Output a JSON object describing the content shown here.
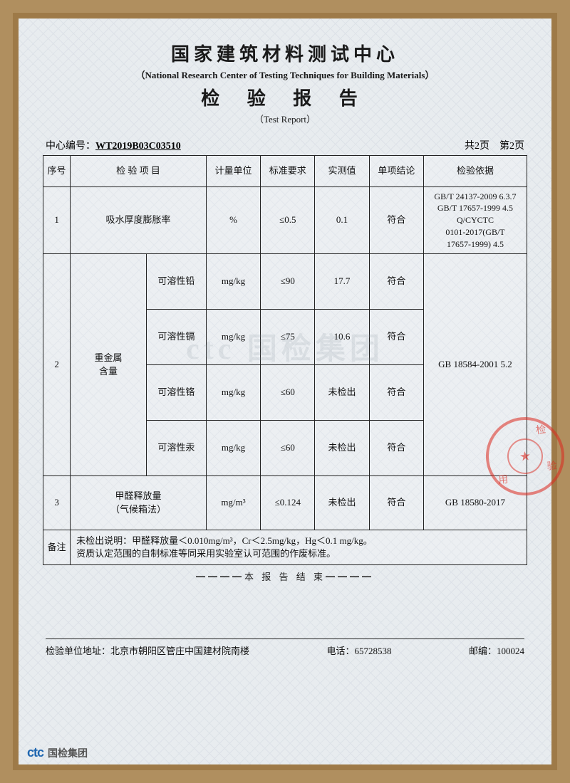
{
  "header": {
    "title_cn": "国家建筑材料测试中心",
    "title_en": "（National Research Center of Testing Techniques for Building Materials）",
    "title2_cn": "检 验 报 告",
    "title2_en": "（Test Report）"
  },
  "meta": {
    "serial_label": "中心编号：",
    "serial_value": "WT2019B03C03510",
    "page_info": "共2页　第2页"
  },
  "columns": {
    "seq": "序号",
    "item": "检 验 项 目",
    "unit": "计量单位",
    "req": "标准要求",
    "val": "实测值",
    "res": "单项结论",
    "basis": "检验依据"
  },
  "rows": {
    "r1": {
      "seq": "1",
      "item": "吸水厚度膨胀率",
      "unit": "%",
      "req": "≤0.5",
      "val": "0.1",
      "res": "符合",
      "basis": "GB/T 24137-2009 6.3.7\nGB/T 17657-1999 4.5\nQ/CYCTC\n0101-2017(GB/T\n17657-1999) 4.5"
    },
    "r2": {
      "seq": "2",
      "item": "重金属\n含量",
      "sub1": {
        "name": "可溶性铅",
        "unit": "mg/kg",
        "req": "≤90",
        "val": "17.7",
        "res": "符合"
      },
      "sub2": {
        "name": "可溶性镉",
        "unit": "mg/kg",
        "req": "≤75",
        "val": "10.6",
        "res": "符合"
      },
      "sub3": {
        "name": "可溶性铬",
        "unit": "mg/kg",
        "req": "≤60",
        "val": "未检出",
        "res": "符合"
      },
      "sub4": {
        "name": "可溶性汞",
        "unit": "mg/kg",
        "req": "≤60",
        "val": "未检出",
        "res": "符合"
      },
      "basis": "GB 18584-2001 5.2"
    },
    "r3": {
      "seq": "3",
      "item": "甲醛释放量\n（气候箱法）",
      "unit": "mg/m³",
      "req": "≤0.124",
      "val": "未检出",
      "res": "符合",
      "basis": "GB 18580-2017"
    }
  },
  "notes": {
    "label": "备注",
    "line1": "未检出说明：甲醛释放量＜0.010mg/m³，Cr＜2.5mg/kg，Hg＜0.1 mg/kg。",
    "line2": "资质认定范围的自制标准等同采用实验室认可范围的作废标准。"
  },
  "end_line": "━━━━本 报 告 结 束━━━━",
  "footer": {
    "addr_label": "检验单位地址：",
    "addr_value": "北京市朝阳区管庄中国建材院南楼",
    "tel_label": "电话：",
    "tel_value": "65728538",
    "post_label": "邮编：",
    "post_value": "100024"
  },
  "logo": {
    "ctc": "ctc",
    "name": "国检集团"
  },
  "watermark": "ctc 国检集团",
  "stamp": {
    "t1": "检",
    "t2": "用",
    "t3": "验"
  },
  "colors": {
    "frame_outer": "#b08f5f",
    "frame_border": "#9e7a48",
    "paper_bg": "#e8ecef",
    "text": "#1a1a1a",
    "border": "#222222",
    "stamp": "rgba(220,40,30,0.55)",
    "logo_blue": "#1e66b0"
  }
}
